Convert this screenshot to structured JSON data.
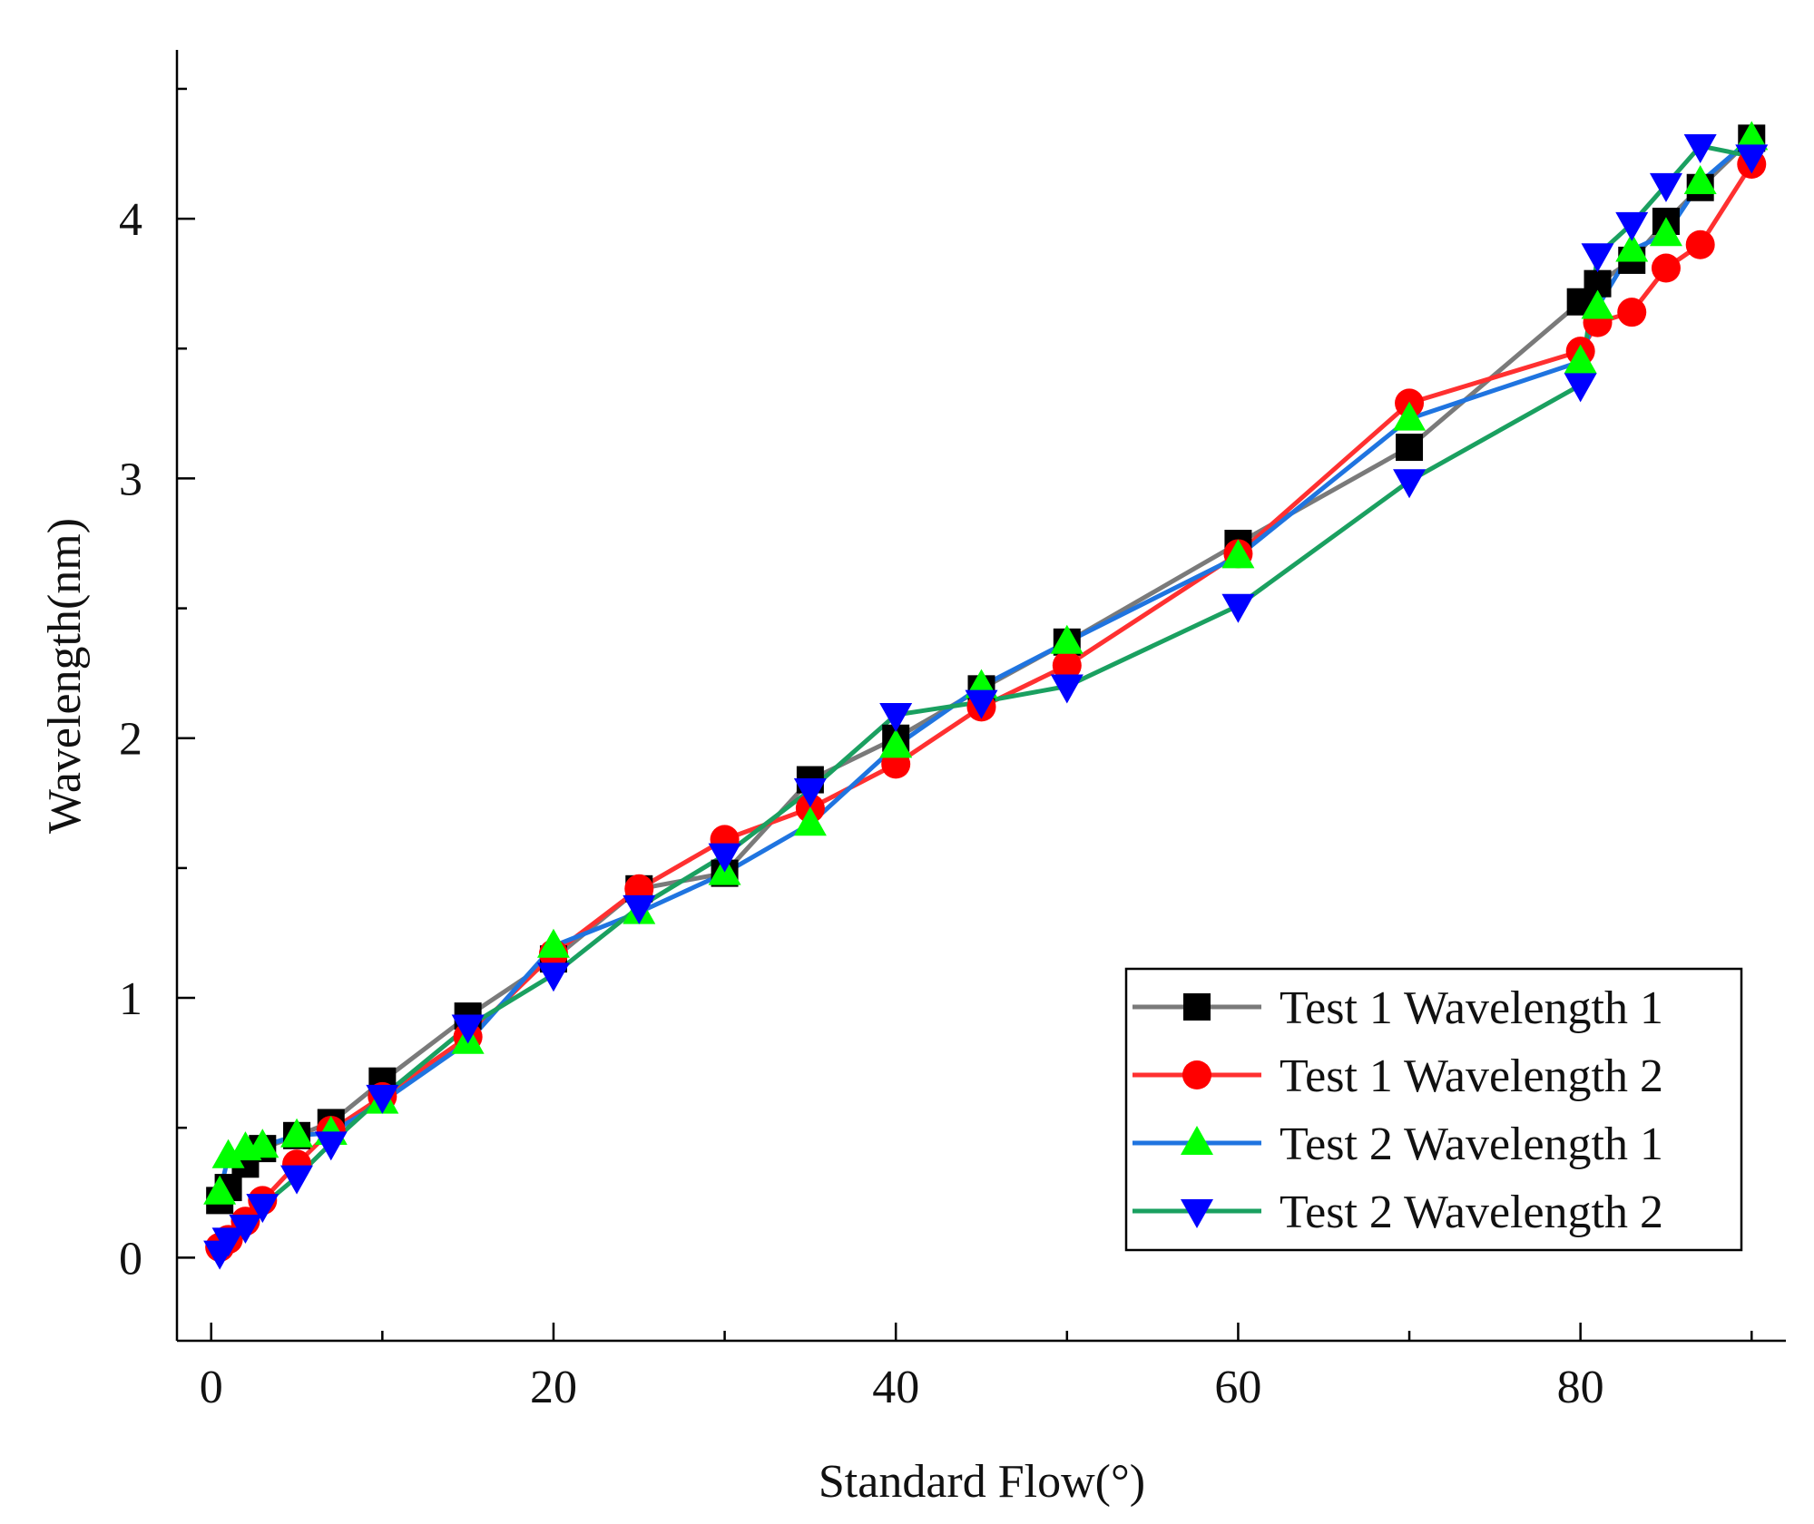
{
  "chart_data": {
    "type": "line",
    "title": "",
    "xlabel": "Standard Flow(°)",
    "ylabel": "Wavelength(nm)",
    "xlim": [
      -2,
      92
    ],
    "ylim": [
      -0.32,
      4.65
    ],
    "xticks": [
      0,
      20,
      40,
      60,
      80
    ],
    "xtick_labels": [
      "0",
      "20",
      "40",
      "60",
      "80"
    ],
    "yticks": [
      0,
      1,
      2,
      3,
      4
    ],
    "ytick_labels": [
      "0",
      "1",
      "2",
      "3",
      "4"
    ],
    "grid": false,
    "legend_position": "bottom-right",
    "series": [
      {
        "name": "Test 1 Wavelength 1",
        "color": "#7a7a7a",
        "marker": "square",
        "marker_color": "#000000",
        "x": [
          0.5,
          1,
          2,
          3,
          5,
          7,
          10,
          15,
          20,
          25,
          30,
          35,
          40,
          45,
          50,
          60,
          70,
          80,
          81,
          83,
          85,
          87,
          90
        ],
        "y": [
          0.22,
          0.27,
          0.36,
          0.42,
          0.47,
          0.52,
          0.68,
          0.93,
          1.15,
          1.42,
          1.48,
          1.84,
          2.0,
          2.19,
          2.37,
          2.75,
          3.12,
          3.68,
          3.75,
          3.84,
          3.99,
          4.12,
          4.31
        ]
      },
      {
        "name": "Test 1 Wavelength 2",
        "color": "#ff3030",
        "marker": "circle",
        "marker_color": "#ff0000",
        "x": [
          0.5,
          1,
          2,
          3,
          5,
          7,
          10,
          15,
          20,
          25,
          30,
          35,
          40,
          45,
          50,
          60,
          70,
          80,
          81,
          83,
          85,
          87,
          90
        ],
        "y": [
          0.04,
          0.07,
          0.14,
          0.22,
          0.36,
          0.49,
          0.62,
          0.85,
          1.17,
          1.42,
          1.61,
          1.73,
          1.9,
          2.12,
          2.28,
          2.71,
          3.29,
          3.49,
          3.6,
          3.64,
          3.81,
          3.9,
          4.21
        ]
      },
      {
        "name": "Test 2 Wavelength 1",
        "color": "#1f74e0",
        "marker": "triangle-up",
        "marker_color": "#00ff00",
        "x": [
          0.5,
          1,
          2,
          3,
          5,
          7,
          10,
          15,
          20,
          25,
          30,
          35,
          40,
          45,
          50,
          60,
          70,
          80,
          81,
          83,
          85,
          87,
          90
        ],
        "y": [
          0.25,
          0.39,
          0.42,
          0.43,
          0.47,
          0.48,
          0.6,
          0.83,
          1.2,
          1.33,
          1.48,
          1.67,
          1.97,
          2.2,
          2.37,
          2.7,
          3.23,
          3.45,
          3.66,
          3.88,
          3.94,
          4.14,
          4.31
        ]
      },
      {
        "name": "Test 2 Wavelength 2",
        "color": "#1aa060",
        "marker": "triangle-down",
        "marker_color": "#0000ff",
        "x": [
          0.5,
          1,
          2,
          3,
          5,
          7,
          10,
          15,
          20,
          25,
          30,
          35,
          40,
          45,
          50,
          60,
          70,
          80,
          81,
          83,
          85,
          87,
          90
        ],
        "y": [
          0.02,
          0.07,
          0.12,
          0.2,
          0.31,
          0.44,
          0.62,
          0.89,
          1.09,
          1.35,
          1.55,
          1.8,
          2.09,
          2.14,
          2.2,
          2.51,
          2.99,
          3.36,
          3.86,
          3.98,
          4.13,
          4.28,
          4.24
        ]
      }
    ]
  }
}
